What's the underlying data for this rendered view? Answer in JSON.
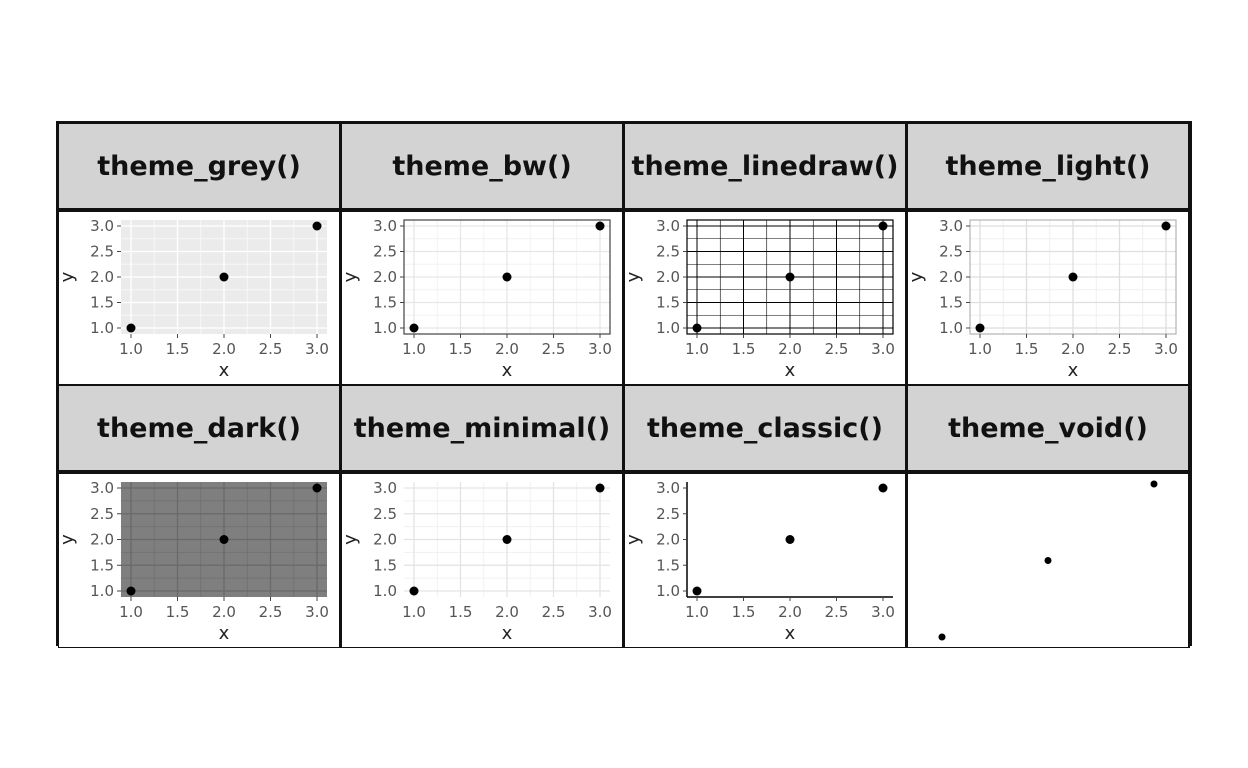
{
  "colors": {
    "header_bg": "#d3d3d3",
    "grey_panel": "#ebebeb",
    "dark_panel": "#7f7f7f",
    "point": "#000000"
  },
  "chart_data": [
    {
      "type": "scatter",
      "theme": "grey",
      "title": "theme_grey()",
      "x": [
        1.0,
        2.0,
        3.0
      ],
      "y": [
        1.0,
        2.0,
        3.0
      ],
      "xlabel": "x",
      "ylabel": "y",
      "xlim": [
        1.0,
        3.0
      ],
      "ylim": [
        1.0,
        3.0
      ],
      "xticks": [
        "1.0",
        "1.5",
        "2.0",
        "2.5",
        "3.0"
      ],
      "yticks": [
        "1.0",
        "1.5",
        "2.0",
        "2.5",
        "3.0"
      ],
      "grid": true
    },
    {
      "type": "scatter",
      "theme": "bw",
      "title": "theme_bw()",
      "x": [
        1.0,
        2.0,
        3.0
      ],
      "y": [
        1.0,
        2.0,
        3.0
      ],
      "xlabel": "x",
      "ylabel": "y",
      "xlim": [
        1.0,
        3.0
      ],
      "ylim": [
        1.0,
        3.0
      ],
      "xticks": [
        "1.0",
        "1.5",
        "2.0",
        "2.5",
        "3.0"
      ],
      "yticks": [
        "1.0",
        "1.5",
        "2.0",
        "2.5",
        "3.0"
      ],
      "grid": true
    },
    {
      "type": "scatter",
      "theme": "linedraw",
      "title": "theme_linedraw()",
      "x": [
        1.0,
        2.0,
        3.0
      ],
      "y": [
        1.0,
        2.0,
        3.0
      ],
      "xlabel": "x",
      "ylabel": "y",
      "xlim": [
        1.0,
        3.0
      ],
      "ylim": [
        1.0,
        3.0
      ],
      "xticks": [
        "1.0",
        "1.5",
        "2.0",
        "2.5",
        "3.0"
      ],
      "yticks": [
        "1.0",
        "1.5",
        "2.0",
        "2.5",
        "3.0"
      ],
      "grid": true
    },
    {
      "type": "scatter",
      "theme": "light",
      "title": "theme_light()",
      "x": [
        1.0,
        2.0,
        3.0
      ],
      "y": [
        1.0,
        2.0,
        3.0
      ],
      "xlabel": "x",
      "ylabel": "y",
      "xlim": [
        1.0,
        3.0
      ],
      "ylim": [
        1.0,
        3.0
      ],
      "xticks": [
        "1.0",
        "1.5",
        "2.0",
        "2.5",
        "3.0"
      ],
      "yticks": [
        "1.0",
        "1.5",
        "2.0",
        "2.5",
        "3.0"
      ],
      "grid": true
    },
    {
      "type": "scatter",
      "theme": "dark",
      "title": "theme_dark()",
      "x": [
        1.0,
        2.0,
        3.0
      ],
      "y": [
        1.0,
        2.0,
        3.0
      ],
      "xlabel": "x",
      "ylabel": "y",
      "xlim": [
        1.0,
        3.0
      ],
      "ylim": [
        1.0,
        3.0
      ],
      "xticks": [
        "1.0",
        "1.5",
        "2.0",
        "2.5",
        "3.0"
      ],
      "yticks": [
        "1.0",
        "1.5",
        "2.0",
        "2.5",
        "3.0"
      ],
      "grid": true
    },
    {
      "type": "scatter",
      "theme": "minimal",
      "title": "theme_minimal()",
      "x": [
        1.0,
        2.0,
        3.0
      ],
      "y": [
        1.0,
        2.0,
        3.0
      ],
      "xlabel": "x",
      "ylabel": "y",
      "xlim": [
        1.0,
        3.0
      ],
      "ylim": [
        1.0,
        3.0
      ],
      "xticks": [
        "1.0",
        "1.5",
        "2.0",
        "2.5",
        "3.0"
      ],
      "yticks": [
        "1.0",
        "1.5",
        "2.0",
        "2.5",
        "3.0"
      ],
      "grid": true
    },
    {
      "type": "scatter",
      "theme": "classic",
      "title": "theme_classic()",
      "x": [
        1.0,
        2.0,
        3.0
      ],
      "y": [
        1.0,
        2.0,
        3.0
      ],
      "xlabel": "x",
      "ylabel": "y",
      "xlim": [
        1.0,
        3.0
      ],
      "ylim": [
        1.0,
        3.0
      ],
      "xticks": [
        "1.0",
        "1.5",
        "2.0",
        "2.5",
        "3.0"
      ],
      "yticks": [
        "1.0",
        "1.5",
        "2.0",
        "2.5",
        "3.0"
      ],
      "grid": false
    },
    {
      "type": "scatter",
      "theme": "void",
      "title": "theme_void()",
      "x": [
        1.0,
        2.0,
        3.0
      ],
      "y": [
        1.0,
        2.0,
        3.0
      ],
      "xlim": [
        1.0,
        3.0
      ],
      "ylim": [
        1.0,
        3.0
      ],
      "grid": false
    }
  ]
}
